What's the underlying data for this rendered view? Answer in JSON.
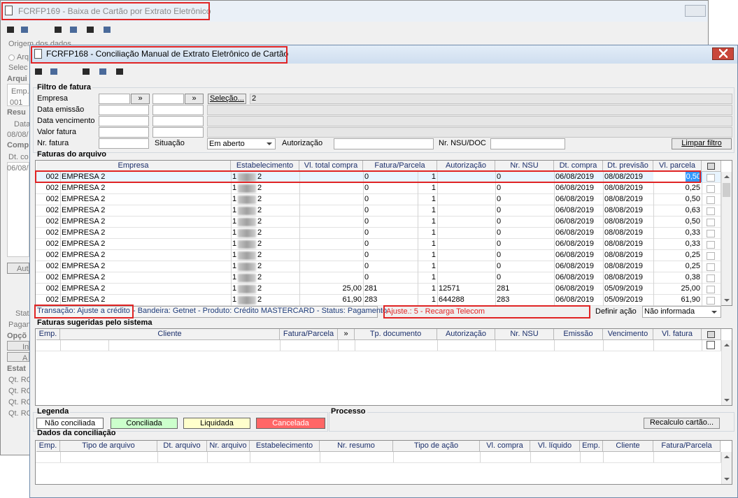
{
  "background_window": {
    "title": "FCRFP169 - Baixa de Cartão por Extrato Eletrônico",
    "fragments": [
      "Origem dos dados",
      "Arq",
      "Selec",
      "Arqui",
      "Emp.",
      "001",
      "Resu",
      "Data",
      "08/08/",
      "Comp",
      "Dt. co",
      "06/08/",
      "Aut",
      "Stat",
      "Pagan",
      "Opçõ",
      "In",
      "A",
      "Estat",
      "Qt. RC",
      "Qt. RC",
      "Qt. RC",
      "Qt. RC"
    ]
  },
  "window": {
    "title": "FCRFP168 - Conciliação Manual de Extrato Eletrônico de Cartão"
  },
  "filter": {
    "title": "Filtro de fatura",
    "labels": [
      "Empresa",
      "Data emissão",
      "Data vencimento",
      "Valor fatura",
      "Nr. fatura"
    ],
    "more_button": "»",
    "selection_button": "Seleção...",
    "selection_value": "2",
    "situacao_label": "Situação",
    "situacao_value": "Em aberto",
    "autorizacao_label": "Autorização",
    "nsu_label": "Nr. NSU/DOC",
    "clear_button": "Limpar filtro"
  },
  "faturas": {
    "title": "Faturas do arquivo",
    "headers": [
      "Empresa",
      "Estabelecimento",
      "Vl. total compra",
      "Fatura/Parcela",
      "Autorização",
      "Nr. NSU",
      "Dt. compra",
      "Dt. previsão",
      "Vl. parcela"
    ],
    "rows": [
      [
        "002",
        "EMPRESA 2",
        "1",
        "2",
        null,
        "0",
        "1",
        null,
        "0",
        "06/08/2019",
        "08/08/2019",
        "0,50"
      ],
      [
        "002",
        "EMPRESA 2",
        "1",
        "2",
        null,
        "0",
        "1",
        null,
        "0",
        "06/08/2019",
        "08/08/2019",
        "0,25"
      ],
      [
        "002",
        "EMPRESA 2",
        "1",
        "2",
        null,
        "0",
        "1",
        null,
        "0",
        "06/08/2019",
        "08/08/2019",
        "0,50"
      ],
      [
        "002",
        "EMPRESA 2",
        "1",
        "2",
        null,
        "0",
        "1",
        null,
        "0",
        "06/08/2019",
        "08/08/2019",
        "0,63"
      ],
      [
        "002",
        "EMPRESA 2",
        "1",
        "2",
        null,
        "0",
        "1",
        null,
        "0",
        "06/08/2019",
        "08/08/2019",
        "0,50"
      ],
      [
        "002",
        "EMPRESA 2",
        "1",
        "2",
        null,
        "0",
        "1",
        null,
        "0",
        "06/08/2019",
        "08/08/2019",
        "0,33"
      ],
      [
        "002",
        "EMPRESA 2",
        "1",
        "2",
        null,
        "0",
        "1",
        null,
        "0",
        "06/08/2019",
        "08/08/2019",
        "0,33"
      ],
      [
        "002",
        "EMPRESA 2",
        "1",
        "2",
        null,
        "0",
        "1",
        null,
        "0",
        "06/08/2019",
        "08/08/2019",
        "0,25"
      ],
      [
        "002",
        "EMPRESA 2",
        "1",
        "2",
        null,
        "0",
        "1",
        null,
        "0",
        "06/08/2019",
        "08/08/2019",
        "0,25"
      ],
      [
        "002",
        "EMPRESA 2",
        "1",
        "2",
        null,
        "0",
        "1",
        null,
        "0",
        "06/08/2019",
        "08/08/2019",
        "0,38"
      ],
      [
        "002",
        "EMPRESA 2",
        "1",
        "2",
        "25,00",
        "281",
        "1",
        "12571",
        "281",
        "06/08/2019",
        "05/09/2019",
        "25,00"
      ],
      [
        "002",
        "EMPRESA 2",
        "1",
        "2",
        "61,90",
        "283",
        "1",
        "644288",
        "283",
        "06/08/2019",
        "05/09/2019",
        "61,90"
      ]
    ]
  },
  "status": {
    "transacao": "Transação: Ajuste a crédito",
    "detalhe": "- Bandeira: Getnet - Produto: Crédito MASTERCARD - Status: Pagamento",
    "ajuste": "Ajuste.: 5 - Recarga Telecom",
    "acao_label": "Definir ação",
    "acao_value": "Não informada"
  },
  "sugeridas": {
    "title": "Faturas sugeridas pelo sistema",
    "headers": [
      "Emp.",
      "Cliente",
      "Fatura/Parcela",
      "»",
      "Tp. documento",
      "Autorização",
      "Nr. NSU",
      "Emissão",
      "Vencimento",
      "Vl. fatura"
    ]
  },
  "legenda": {
    "title": "Legenda",
    "items": [
      "Não conciliada",
      "Conciliada",
      "Liquidada",
      "Cancelada"
    ]
  },
  "processo": {
    "title": "Processo",
    "button": "Recalculo cartão..."
  },
  "conciliacao": {
    "title": "Dados da conciliação",
    "headers": [
      "Emp.",
      "Tipo de arquivo",
      "Dt. arquivo",
      "Nr. arquivo",
      "Estabelecimento",
      "Nr. resumo",
      "Tipo de ação",
      "Vl. compra",
      "Vl. líquido",
      "Emp.",
      "Cliente",
      "Fatura/Parcela"
    ]
  }
}
